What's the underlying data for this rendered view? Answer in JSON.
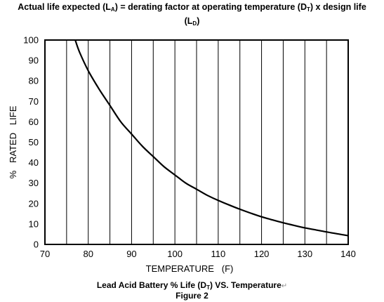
{
  "chart_data": {
    "type": "line",
    "title_parts": {
      "a": "Actual life expected (L",
      "a_sub": "A",
      "b": ") = derating factor at operating temperature (D",
      "b_sub": "T",
      "c": ") x design life",
      "d": "(L",
      "d_sub": "D",
      "e": ")"
    },
    "xlabel": "TEMPERATURE   (F)",
    "ylabel": "%   RATED   LIFE",
    "xlim": [
      70,
      140
    ],
    "ylim": [
      0,
      100
    ],
    "x_ticks": [
      "70",
      "80",
      "90",
      "100",
      "110",
      "120",
      "130",
      "140"
    ],
    "y_ticks": [
      "0",
      "10",
      "20",
      "30",
      "40",
      "50",
      "60",
      "70",
      "80",
      "90",
      "100"
    ],
    "vertical_grid_every": 5,
    "horizontal_grid": false,
    "series": [
      {
        "color": "#000000",
        "x": [
          77,
          78,
          80,
          82.5,
          85,
          87.5,
          90,
          92.5,
          95,
          97.5,
          100,
          102.5,
          105,
          107.5,
          110,
          112.5,
          115,
          117.5,
          120,
          122.5,
          125,
          127.5,
          130,
          132.5,
          135,
          137.5,
          140
        ],
        "y": [
          100,
          94,
          85,
          76,
          68,
          60,
          54,
          48,
          43,
          38,
          34,
          30,
          27,
          24,
          21.5,
          19.3,
          17.2,
          15.3,
          13.5,
          12,
          10.6,
          9.3,
          8.1,
          7.1,
          6.1,
          5.2,
          4.3
        ]
      }
    ]
  },
  "caption": {
    "line1_a": "Lead Acid Battery % Life (D",
    "line1_sub": "T",
    "line1_b": ") VS. Temperature",
    "line1_mark": "↵",
    "line2": "Figure 2"
  }
}
